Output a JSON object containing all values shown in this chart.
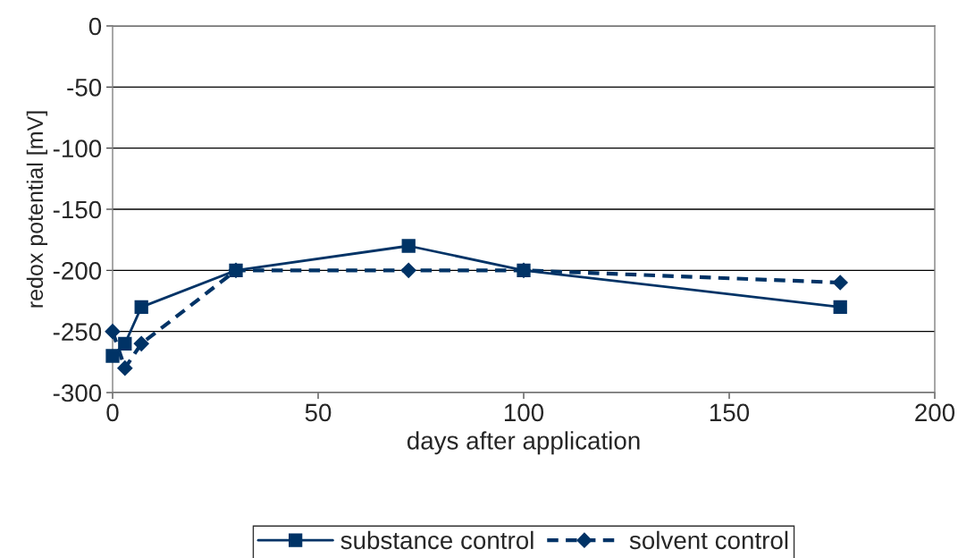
{
  "chart_data": {
    "type": "line",
    "xlabel": "days after application",
    "ylabel": "redox potential [mV]",
    "xlim": [
      0,
      200
    ],
    "xticks": [
      0,
      50,
      100,
      150,
      200
    ],
    "ylim": [
      -300,
      0
    ],
    "yticks": [
      -300,
      -250,
      -200,
      -150,
      -100,
      -50,
      0
    ],
    "grid": "y",
    "legend": "bottom",
    "series": [
      {
        "name": "substance control",
        "color": "#003366",
        "marker": "square",
        "line_style": "solid",
        "x": [
          0,
          3,
          7,
          30,
          72,
          100,
          177
        ],
        "values": [
          -270,
          -260,
          -230,
          -200,
          -180,
          -200,
          -230
        ]
      },
      {
        "name": "solvent control",
        "color": "#003366",
        "marker": "diamond",
        "line_style": "dashed",
        "x": [
          0,
          3,
          7,
          30,
          72,
          100,
          177
        ],
        "values": [
          -250,
          -280,
          -260,
          -200,
          -200,
          -200,
          -210
        ]
      }
    ]
  }
}
